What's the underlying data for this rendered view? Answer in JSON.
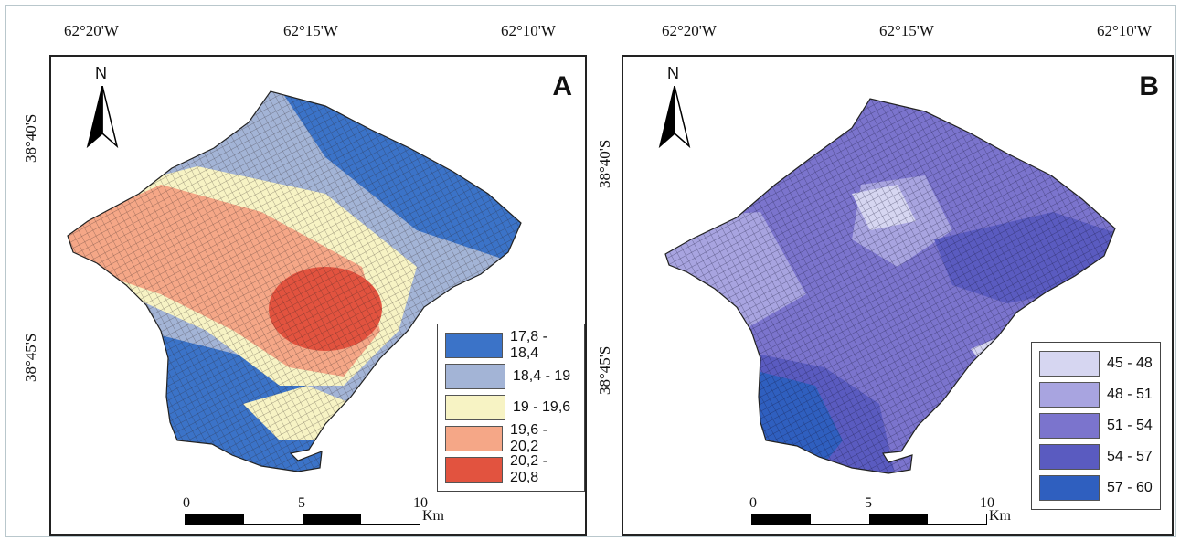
{
  "top_coords_a": [
    "62°20'W",
    "62°15'W",
    "62°10'W"
  ],
  "top_coords_b": [
    "62°20'W",
    "62°15'W",
    "62°10'W"
  ],
  "side_coords_a": [
    "38°40'S",
    "38°45'S"
  ],
  "side_coords_b": [
    "38°40'S",
    "38°45'S"
  ],
  "panel_a": {
    "letter": "A",
    "north": "N",
    "legend": [
      {
        "label": "17,8 - 18,4",
        "color": "#3b73c8"
      },
      {
        "label": "18,4 - 19",
        "color": "#a3b4d6"
      },
      {
        "label": "19 - 19,6",
        "color": "#f7f3c4"
      },
      {
        "label": "19,6 - 20,2",
        "color": "#f5a787"
      },
      {
        "label": "20,2 - 20,8",
        "color": "#e2533f"
      }
    ],
    "scale": {
      "ticks": [
        "0",
        "5",
        "10"
      ],
      "unit": "Km"
    }
  },
  "panel_b": {
    "letter": "B",
    "north": "N",
    "legend": [
      {
        "label": "45 - 48",
        "color": "#d6d6f1"
      },
      {
        "label": "48 - 51",
        "color": "#a8a4e0"
      },
      {
        "label": "51 - 54",
        "color": "#7b74cd"
      },
      {
        "label": "54 - 57",
        "color": "#5a5bc0"
      },
      {
        "label": "57 - 60",
        "color": "#2f5fbf"
      }
    ],
    "scale": {
      "ticks": [
        "0",
        "5",
        "10"
      ],
      "unit": "Km"
    }
  }
}
